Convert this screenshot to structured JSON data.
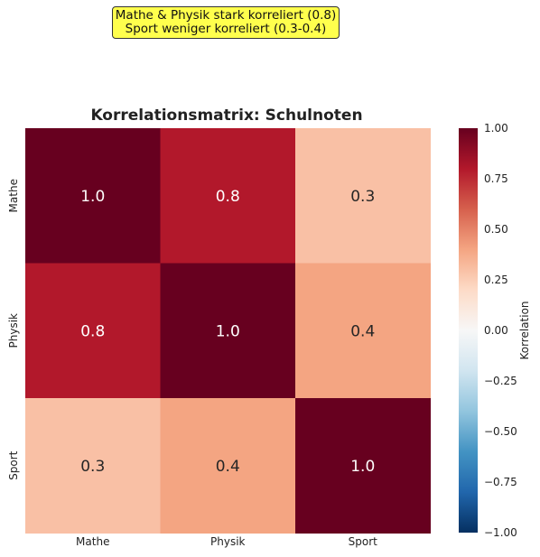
{
  "annotation": {
    "line1": "Mathe & Physik stark korreliert (0.8)",
    "line2": "Sport weniger korreliert (0.3-0.4)"
  },
  "chart_data": {
    "type": "heatmap",
    "title": "Korrelationsmatrix: Schulnoten",
    "x_categories": [
      "Mathe",
      "Physik",
      "Sport"
    ],
    "y_categories": [
      "Mathe",
      "Physik",
      "Sport"
    ],
    "values": [
      [
        1.0,
        0.8,
        0.3
      ],
      [
        0.8,
        1.0,
        0.4
      ],
      [
        0.3,
        0.4,
        1.0
      ]
    ],
    "cell_labels": [
      [
        "1.0",
        "0.8",
        "0.3"
      ],
      [
        "0.8",
        "1.0",
        "0.4"
      ],
      [
        "0.3",
        "0.4",
        "1.0"
      ]
    ],
    "colorbar": {
      "label": "Korrelation",
      "range": [
        -1.0,
        1.0
      ],
      "ticks": [
        "1.00",
        "0.75",
        "0.50",
        "0.25",
        "0.00",
        "−0.25",
        "−0.50",
        "−0.75",
        "−1.00"
      ],
      "tick_values": [
        1.0,
        0.75,
        0.5,
        0.25,
        0.0,
        -0.25,
        -0.5,
        -0.75,
        -1.0
      ],
      "colormap": "RdBu_r"
    }
  }
}
